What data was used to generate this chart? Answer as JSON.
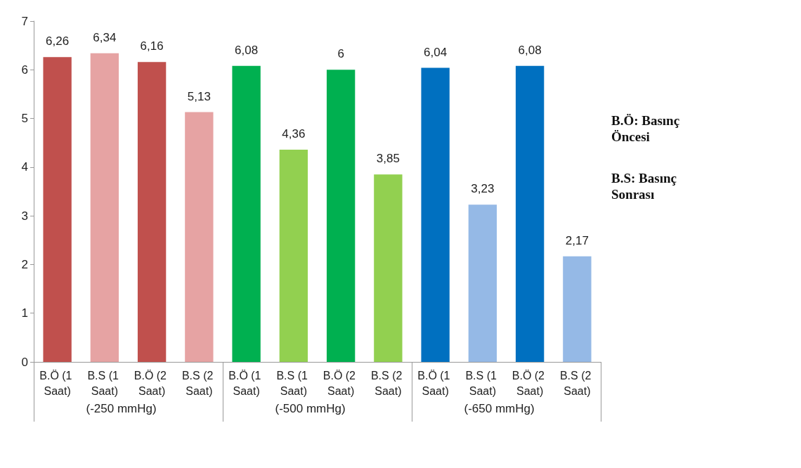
{
  "chart_data": {
    "type": "bar",
    "categories": [
      "B.Ö (1 Saat)",
      "B.S (1 Saat)",
      "B.Ö (2 Saat)",
      "B.S (2 Saat)",
      "B.Ö (1 Saat)",
      "B.S (1 Saat)",
      "B.Ö (2 Saat)",
      "B.S (2 Saat)",
      "B.Ö (1 Saat)",
      "B.S (1 Saat)",
      "B.Ö (2 Saat)",
      "B.S (2 Saat)"
    ],
    "values": [
      6.26,
      6.34,
      6.16,
      5.13,
      6.08,
      4.36,
      6,
      3.85,
      6.04,
      3.23,
      6.08,
      2.17
    ],
    "value_labels": [
      "6,26",
      "6,34",
      "6,16",
      "5,13",
      "6,08",
      "4,36",
      "6",
      "3,85",
      "6,04",
      "3,23",
      "6,08",
      "2,17"
    ],
    "colors": [
      "#c0504d",
      "#e6a3a3",
      "#c0504d",
      "#e6a3a3",
      "#00b050",
      "#92d050",
      "#00b050",
      "#92d050",
      "#0070c0",
      "#95b9e6",
      "#0070c0",
      "#95b9e6"
    ],
    "ylim": [
      0,
      7
    ],
    "yticks": [
      0,
      1,
      2,
      3,
      4,
      5,
      6,
      7
    ],
    "grid": false,
    "annotations": [
      "(-250 mmHg)",
      "(-500 mmHg)",
      "(-650 mmHg)",
      "B.Ö: Basınç Öncesi",
      "B.S: Basınç Sonrası"
    ]
  }
}
